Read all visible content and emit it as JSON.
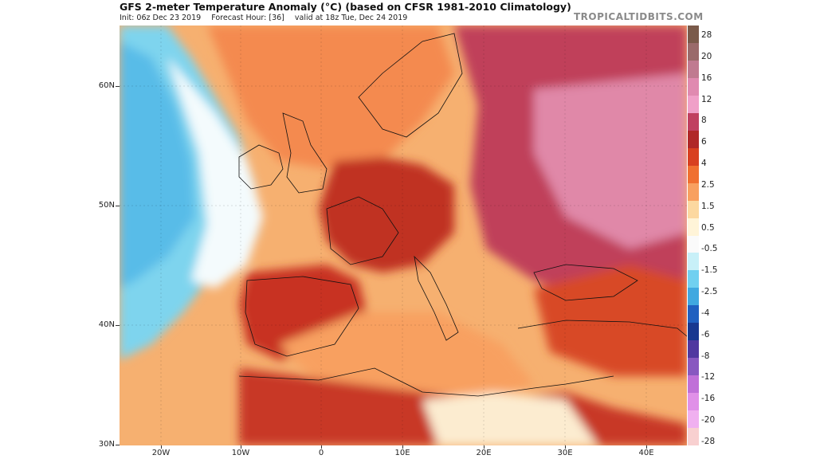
{
  "header": {
    "title": "GFS 2-meter Temperature Anomaly (°C) (based on CFSR 1981-2010 Climatology)",
    "init": "Init: 06z Dec 23 2019",
    "forecast_hour": "Forecast Hour: [36]",
    "valid": "valid at 18z Tue, Dec 24 2019",
    "brand": "TROPICALTIDBITS.COM"
  },
  "map": {
    "lat_labels": [
      "60N",
      "50N",
      "40N",
      "30N"
    ],
    "lon_labels": [
      "20W",
      "10W",
      "0",
      "10E",
      "20E",
      "30E",
      "40E"
    ]
  },
  "colorbar": {
    "labels": [
      "28",
      "20",
      "16",
      "12",
      "8",
      "6",
      "4",
      "2.5",
      "1.5",
      "0.5",
      "-0.5",
      "-1.5",
      "-2.5",
      "-4",
      "-6",
      "-8",
      "-12",
      "-16",
      "-20",
      "-28"
    ],
    "colors": [
      "#7a5a4a",
      "#9a6a6a",
      "#c07a90",
      "#e08ab0",
      "#f0a0c8",
      "#c04060",
      "#b02828",
      "#d84020",
      "#f07030",
      "#f8a060",
      "#fcd8a0",
      "#fff4d8",
      "#fafafa",
      "#c8f0f8",
      "#70d0f0",
      "#40a8e0",
      "#2060c0",
      "#183890",
      "#5038a0",
      "#8858c0",
      "#c070d8",
      "#e090e8",
      "#f0b0f0",
      "#f8d0d0"
    ]
  }
}
